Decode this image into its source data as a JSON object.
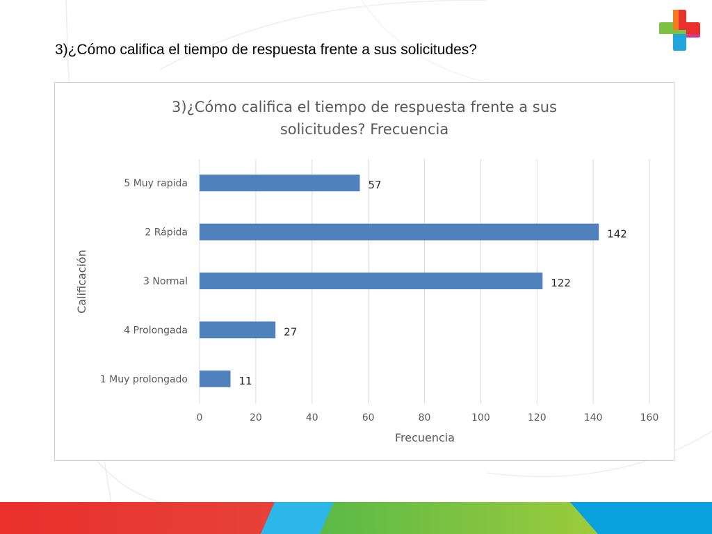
{
  "slide": {
    "title": "3)¿Cómo califica el tiempo de respuesta frente a sus solicitudes?"
  },
  "colors": {
    "bar": "#4f81bd",
    "grid": "#d9d9d9",
    "text": "#595959"
  },
  "logo_icon": "medical-cross-icon",
  "chart_data": {
    "type": "bar",
    "orientation": "horizontal",
    "title_lines": [
      "3)¿Cómo califica el tiempo de respuesta frente a sus",
      "solicitudes? Frecuencia"
    ],
    "xlabel": "Frecuencia",
    "ylabel": "Calificación",
    "categories": [
      "5 Muy rapida",
      "2 Rápida",
      "3 Normal",
      "4 Prolongada",
      "1 Muy prolongado"
    ],
    "values": [
      57,
      142,
      122,
      27,
      11
    ],
    "xlim": [
      0,
      160
    ],
    "xticks": [
      0,
      20,
      40,
      60,
      80,
      100,
      120,
      140,
      160
    ],
    "grid": "vertical"
  }
}
